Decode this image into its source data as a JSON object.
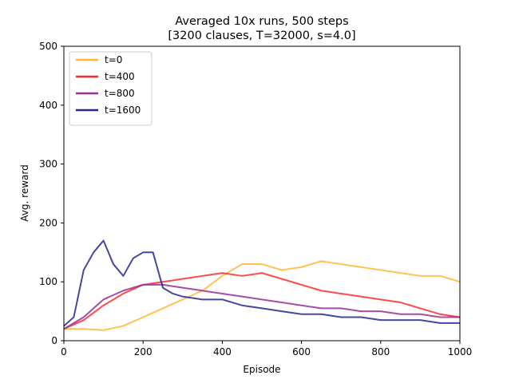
{
  "chart_data": {
    "type": "line",
    "title": "Averaged 10x runs, 500 steps",
    "subtitle": "[3200 clauses, T=32000, s=4.0]",
    "xlabel": "Episode",
    "ylabel": "Avg. reward",
    "xlim": [
      0,
      1000
    ],
    "ylim": [
      0,
      500
    ],
    "xticks": [
      0,
      200,
      400,
      600,
      800,
      1000
    ],
    "yticks": [
      0,
      100,
      200,
      300,
      400,
      500
    ],
    "grid": false,
    "legend_position": "top-left",
    "series": [
      {
        "name": "t=0",
        "color": "#ffb733",
        "x": [
          0,
          50,
          100,
          150,
          200,
          250,
          300,
          350,
          400,
          450,
          500,
          550,
          600,
          650,
          700,
          750,
          800,
          850,
          900,
          950,
          1000
        ],
        "y": [
          20,
          20,
          18,
          25,
          40,
          55,
          70,
          85,
          110,
          130,
          130,
          120,
          125,
          135,
          130,
          125,
          120,
          115,
          110,
          110,
          100
        ]
      },
      {
        "name": "t=400",
        "color": "#ff2a2a",
        "x": [
          0,
          50,
          100,
          150,
          200,
          250,
          300,
          350,
          400,
          450,
          500,
          550,
          600,
          650,
          700,
          750,
          800,
          850,
          900,
          950,
          1000
        ],
        "y": [
          20,
          35,
          60,
          80,
          95,
          100,
          105,
          110,
          115,
          110,
          115,
          105,
          95,
          85,
          80,
          75,
          70,
          65,
          55,
          45,
          40
        ]
      },
      {
        "name": "t=800",
        "color": "#952e98",
        "x": [
          0,
          50,
          100,
          150,
          200,
          250,
          300,
          350,
          400,
          450,
          500,
          550,
          600,
          650,
          700,
          750,
          800,
          850,
          900,
          950,
          1000
        ],
        "y": [
          20,
          40,
          70,
          85,
          95,
          95,
          90,
          85,
          80,
          75,
          70,
          65,
          60,
          55,
          55,
          50,
          50,
          45,
          45,
          40,
          40
        ]
      },
      {
        "name": "t=1600",
        "color": "#262693",
        "x": [
          0,
          25,
          50,
          75,
          100,
          125,
          150,
          175,
          200,
          225,
          250,
          275,
          300,
          350,
          400,
          450,
          500,
          550,
          600,
          650,
          700,
          750,
          800,
          850,
          900,
          950,
          1000
        ],
        "y": [
          25,
          40,
          120,
          150,
          170,
          130,
          110,
          140,
          150,
          150,
          90,
          80,
          75,
          70,
          70,
          60,
          55,
          50,
          45,
          45,
          40,
          40,
          35,
          35,
          35,
          30,
          30
        ]
      }
    ]
  }
}
